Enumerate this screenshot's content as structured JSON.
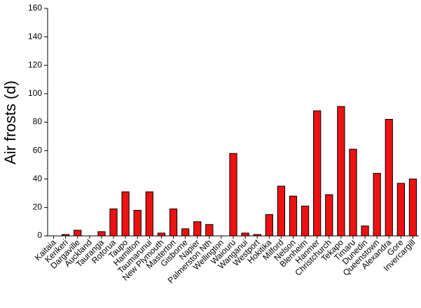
{
  "chart_data": {
    "type": "bar",
    "y_label": "Air frosts (d)",
    "categories": [
      "Kaitaia",
      "Kerikeri",
      "Dargaville",
      "Auckland",
      "Tauranga",
      "Rotorua",
      "Taupo",
      "Hamilton",
      "Taumarunui",
      "New Plymouth",
      "Masterton",
      "Gisborne",
      "Napier",
      "Palmerston Nth",
      "Wellington",
      "Waiouru",
      "Wanganui",
      "Westport",
      "Hokitika",
      "Milford",
      "Nelson",
      "Blenheim",
      "Hanmer",
      "Christchurch",
      "Tekapo",
      "Timaru",
      "Dunedin",
      "Queenstown",
      "Alexandra",
      "Gore",
      "Invercargill"
    ],
    "values": [
      0,
      1,
      4,
      0,
      3,
      19,
      31,
      18,
      31,
      2,
      19,
      5,
      10,
      8,
      0,
      58,
      2,
      1,
      15,
      35,
      28,
      21,
      88,
      29,
      91,
      61,
      7,
      44,
      82,
      37,
      40
    ],
    "color": "#ee1111",
    "ylim": [
      0,
      160
    ],
    "yticks": [
      0,
      20,
      40,
      60,
      80,
      100,
      120,
      140,
      160
    ]
  }
}
